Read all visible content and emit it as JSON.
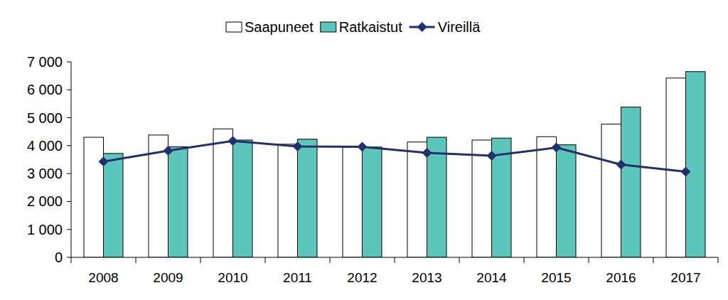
{
  "chart_data": {
    "type": "bar",
    "categories": [
      "2008",
      "2009",
      "2010",
      "2011",
      "2012",
      "2013",
      "2014",
      "2015",
      "2016",
      "2017"
    ],
    "series": [
      {
        "name": "Saapuneet",
        "type": "bar",
        "color": "#ffffff",
        "values": [
          4300,
          4380,
          4600,
          4050,
          3950,
          4130,
          4200,
          4320,
          4770,
          6420
        ]
      },
      {
        "name": "Ratkaistut",
        "type": "bar",
        "color": "#5cc6bc",
        "values": [
          3720,
          3960,
          4200,
          4230,
          3950,
          4300,
          4270,
          4030,
          5380,
          6650
        ]
      },
      {
        "name": "Vireillä",
        "type": "line",
        "color": "#23306e",
        "marker": "diamond",
        "line_style": "solid",
        "values": [
          3430,
          3820,
          4170,
          3970,
          3960,
          3740,
          3640,
          3930,
          3320,
          3070
        ]
      }
    ],
    "ylim": [
      0,
      7000
    ],
    "yticks": [
      {
        "value": 0,
        "label": "0"
      },
      {
        "value": 1000,
        "label": "1 000"
      },
      {
        "value": 2000,
        "label": "2 000"
      },
      {
        "value": 3000,
        "label": "3 000"
      },
      {
        "value": 4000,
        "label": "4 000"
      },
      {
        "value": 5000,
        "label": "5 000"
      },
      {
        "value": 6000,
        "label": "6 000"
      },
      {
        "value": 7000,
        "label": "7 000"
      }
    ],
    "grid": false,
    "legend": "top"
  }
}
